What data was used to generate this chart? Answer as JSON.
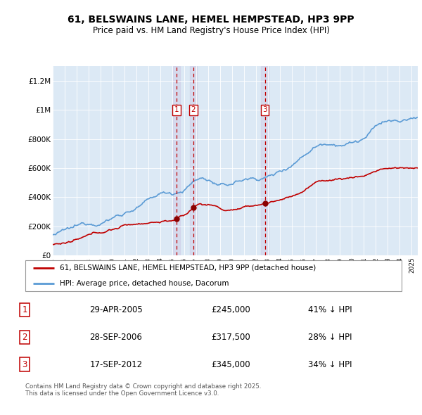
{
  "title": "61, BELSWAINS LANE, HEMEL HEMPSTEAD, HP3 9PP",
  "subtitle": "Price paid vs. HM Land Registry's House Price Index (HPI)",
  "bg_color": "#dce9f5",
  "red_label": "61, BELSWAINS LANE, HEMEL HEMPSTEAD, HP3 9PP (detached house)",
  "blue_label": "HPI: Average price, detached house, Dacorum",
  "transactions": [
    {
      "num": 1,
      "date": "29-APR-2005",
      "price": 245000,
      "pct": "41%",
      "dir": "↓",
      "year": 2005.33
    },
    {
      "num": 2,
      "date": "28-SEP-2006",
      "price": 317500,
      "pct": "28%",
      "dir": "↓",
      "year": 2006.75
    },
    {
      "num": 3,
      "date": "17-SEP-2012",
      "price": 345000,
      "pct": "34%",
      "dir": "↓",
      "year": 2012.72
    }
  ],
  "footer": "Contains HM Land Registry data © Crown copyright and database right 2025.\nThis data is licensed under the Open Government Licence v3.0.",
  "ylim": [
    0,
    1300000
  ],
  "yticks": [
    0,
    200000,
    400000,
    600000,
    800000,
    1000000,
    1200000
  ],
  "ytick_labels": [
    "£0",
    "£200K",
    "£400K",
    "£600K",
    "£800K",
    "£1M",
    "£1.2M"
  ],
  "xmin": 1995,
  "xmax": 2025.5
}
